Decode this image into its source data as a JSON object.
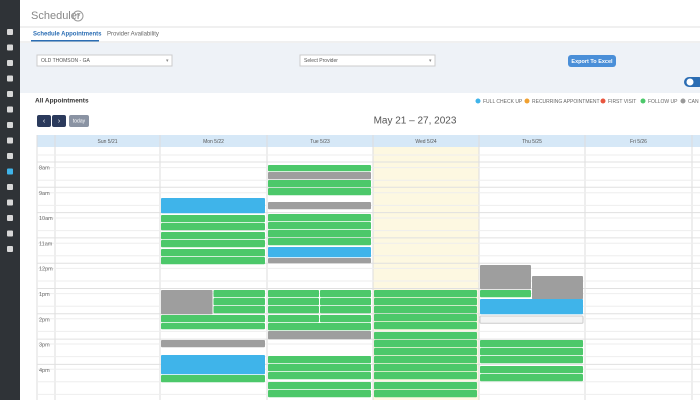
{
  "header": {
    "title": "Scheduler",
    "help": "?"
  },
  "tabs": [
    "Schedule Appointments",
    "Provider Availability"
  ],
  "filters": {
    "location": "OLD THOMSON - GA",
    "provider": "Select Provider",
    "export": "Export To Excel"
  },
  "section_title": "All Appointments",
  "legend": [
    "FULL CHECK UP",
    "RECURRING APPOINTMENT",
    "FIRST VISIT",
    "FOLLOW UP",
    "CAN"
  ],
  "nav": {
    "today": "today"
  },
  "calendar": {
    "range": "May 21 – 27, 2023",
    "days": [
      "Sun 5/21",
      "Mon 5/22",
      "Tue 5/23",
      "Wed 5/24",
      "Thu 5/25",
      "Fri 5/26"
    ],
    "times": [
      "8am",
      "9am",
      "10am",
      "11am",
      "12pm",
      "1pm",
      "2pm",
      "3pm",
      "4pm"
    ]
  }
}
